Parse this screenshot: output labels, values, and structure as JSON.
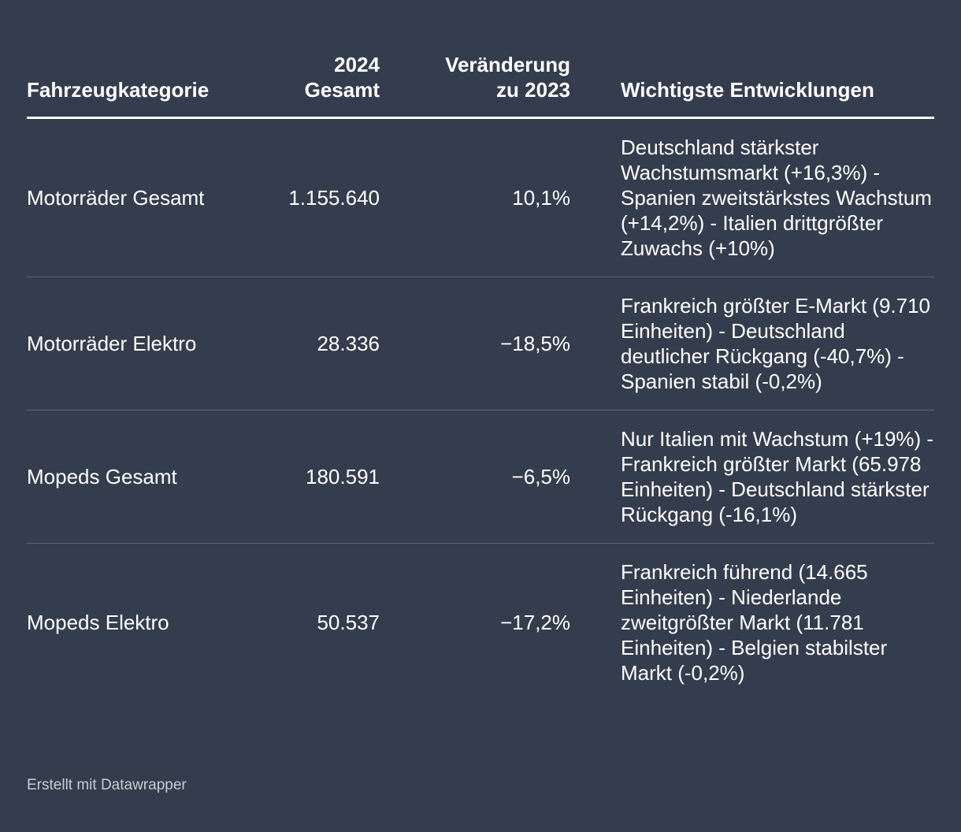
{
  "table": {
    "headers": {
      "category": "Fahrzeugkategorie",
      "total_line1": "2024",
      "total_line2": "Gesamt",
      "change_line1": "Veränderung",
      "change_line2": "zu 2023",
      "developments": "Wichtigste Entwicklungen"
    },
    "rows": [
      {
        "category": "Motorräder Gesamt",
        "total": "1.155.640",
        "change": "10,1%",
        "developments": "Deutschland stärkster Wachstumsmarkt (+16,3%) - Spanien zweitstärkstes Wachstum (+14,2%) - Italien drittgrößter Zuwachs (+10%)"
      },
      {
        "category": "Motorräder Elektro",
        "total": "28.336",
        "change": "−18,5%",
        "developments": "Frankreich größter E-Markt (9.710 Einheiten) - Deutschland deutlicher Rückgang (-40,7%) - Spanien stabil (-0,2%)"
      },
      {
        "category": "Mopeds Gesamt",
        "total": "180.591",
        "change": "−6,5%",
        "developments": "Nur Italien mit Wachstum (+19%) - Frankreich größter Markt (65.978 Einheiten) - Deutschland stärkster Rückgang (-16,1%)"
      },
      {
        "category": "Mopeds Elektro",
        "total": "50.537",
        "change": "−17,2%",
        "developments": "Frankreich führend (14.665 Einheiten) - Niederlande zweitgrößter Markt (11.781 Einheiten) - Belgien stabilster Markt (-0,2%)"
      }
    ]
  },
  "footer": {
    "credit": "Erstellt mit Datawrapper"
  }
}
